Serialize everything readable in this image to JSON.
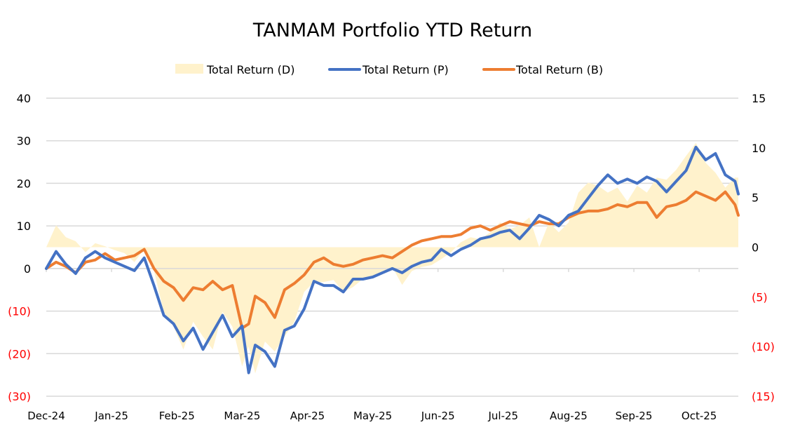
{
  "chart_data": {
    "type": "line",
    "title": "TANMAM Portfolio YTD Return",
    "legend_position": "top",
    "grid": true,
    "colors": {
      "D": "#fff2cc",
      "P": "#4472c4",
      "B": "#ed7d31",
      "negative_tick": "#ff0000",
      "positive_tick": "#000000",
      "grid": "#d9d9d9"
    },
    "x_tick_labels": [
      "Dec-24",
      "Jan-25",
      "Feb-25",
      "Mar-25",
      "Apr-25",
      "May-25",
      "Jun-25",
      "Jul-25",
      "Aug-25",
      "Sep-25",
      "Oct-25"
    ],
    "y_left": {
      "range": [
        -30,
        40
      ],
      "ticks": [
        40,
        30,
        20,
        10,
        0,
        -10,
        -20,
        -30
      ],
      "tick_labels": [
        "40",
        "30",
        "20",
        "10",
        "0",
        "(10)",
        "(20)",
        "(30)"
      ]
    },
    "y_right": {
      "range": [
        -15,
        15
      ],
      "ticks": [
        15,
        10,
        5,
        0,
        -5,
        -10,
        -15
      ],
      "tick_labels": [
        "15",
        "10",
        "5",
        "0",
        "(5)",
        "(10)",
        "(15)"
      ]
    },
    "x_range_months": [
      0,
      10.6
    ],
    "series": [
      {
        "name": "Total Return (D)",
        "key": "D",
        "type": "area",
        "axis": "right",
        "x": [
          0,
          0.15,
          0.3,
          0.45,
          0.6,
          0.75,
          0.9,
          1.05,
          1.2,
          1.35,
          1.5,
          1.65,
          1.8,
          1.95,
          2.1,
          2.25,
          2.4,
          2.55,
          2.7,
          2.85,
          3.0,
          3.1,
          3.2,
          3.35,
          3.5,
          3.65,
          3.8,
          3.95,
          4.1,
          4.25,
          4.4,
          4.55,
          4.7,
          4.85,
          5.0,
          5.15,
          5.3,
          5.45,
          5.6,
          5.75,
          5.9,
          6.05,
          6.2,
          6.35,
          6.5,
          6.65,
          6.8,
          6.95,
          7.1,
          7.25,
          7.4,
          7.55,
          7.7,
          7.85,
          8.0,
          8.15,
          8.3,
          8.45,
          8.6,
          8.75,
          8.9,
          9.05,
          9.2,
          9.35,
          9.5,
          9.65,
          9.8,
          9.95,
          10.1,
          10.25,
          10.4,
          10.55,
          10.6
        ],
        "values": [
          0,
          2.2,
          1.0,
          0.6,
          -0.5,
          0.4,
          0.1,
          -0.3,
          -0.6,
          -1.5,
          -0.2,
          -2.4,
          -6.5,
          -8.0,
          -10.3,
          -7.5,
          -9.0,
          -10.3,
          -6.5,
          -8.0,
          -12.0,
          -10.0,
          -12.7,
          -9.5,
          -10.5,
          -9.0,
          -7.5,
          -4.5,
          -3.5,
          -3.5,
          -3.3,
          -4.5,
          -4.0,
          -3.2,
          -3.0,
          -2.5,
          -2.0,
          -3.8,
          -2.4,
          -2.0,
          -1.8,
          -1.2,
          -0.5,
          0.5,
          1.0,
          0.8,
          1.5,
          2.5,
          1.8,
          2.2,
          3.0,
          0.0,
          2.5,
          1.5,
          2.5,
          5.5,
          6.5,
          6.2,
          5.5,
          6.0,
          4.6,
          6.2,
          5.5,
          7.0,
          6.8,
          7.8,
          9.2,
          10.5,
          8.5,
          7.5,
          6.0,
          7.0,
          7.0
        ]
      },
      {
        "name": "Total Return (P)",
        "key": "P",
        "type": "line",
        "axis": "left",
        "x": [
          0,
          0.15,
          0.3,
          0.45,
          0.6,
          0.75,
          0.9,
          1.05,
          1.2,
          1.35,
          1.5,
          1.65,
          1.8,
          1.95,
          2.1,
          2.25,
          2.4,
          2.55,
          2.7,
          2.85,
          3.0,
          3.1,
          3.2,
          3.35,
          3.5,
          3.65,
          3.8,
          3.95,
          4.1,
          4.25,
          4.4,
          4.55,
          4.7,
          4.85,
          5.0,
          5.15,
          5.3,
          5.45,
          5.6,
          5.75,
          5.9,
          6.05,
          6.2,
          6.35,
          6.5,
          6.65,
          6.8,
          6.95,
          7.1,
          7.25,
          7.4,
          7.55,
          7.7,
          7.85,
          8.0,
          8.15,
          8.3,
          8.45,
          8.6,
          8.75,
          8.9,
          9.05,
          9.2,
          9.35,
          9.5,
          9.65,
          9.8,
          9.95,
          10.1,
          10.25,
          10.4,
          10.55,
          10.6
        ],
        "values": [
          0,
          4.0,
          1.0,
          -1.2,
          2.5,
          4.0,
          2.5,
          1.5,
          0.5,
          -0.5,
          2.5,
          -4.0,
          -11.0,
          -13.0,
          -17.0,
          -14.0,
          -19.0,
          -15.0,
          -11.0,
          -16.0,
          -13.5,
          -24.5,
          -18.0,
          -19.5,
          -23.0,
          -14.5,
          -13.5,
          -9.5,
          -3.0,
          -4.0,
          -4.0,
          -5.5,
          -2.5,
          -2.5,
          -2.0,
          -1.0,
          0.0,
          -1.0,
          0.5,
          1.5,
          2.0,
          4.5,
          3.0,
          4.5,
          5.5,
          7.0,
          7.5,
          8.5,
          9.0,
          7.0,
          9.5,
          12.5,
          11.5,
          10.0,
          12.5,
          13.5,
          16.5,
          19.5,
          22.0,
          20.0,
          21.0,
          20.0,
          21.5,
          20.5,
          18.0,
          20.5,
          23.0,
          28.5,
          25.5,
          27.0,
          22.0,
          20.5,
          17.5
        ]
      },
      {
        "name": "Total Return (B)",
        "key": "B",
        "type": "line",
        "axis": "left",
        "x": [
          0,
          0.15,
          0.3,
          0.45,
          0.6,
          0.75,
          0.9,
          1.05,
          1.2,
          1.35,
          1.5,
          1.65,
          1.8,
          1.95,
          2.1,
          2.25,
          2.4,
          2.55,
          2.7,
          2.85,
          3.0,
          3.1,
          3.2,
          3.35,
          3.5,
          3.65,
          3.8,
          3.95,
          4.1,
          4.25,
          4.4,
          4.55,
          4.7,
          4.85,
          5.0,
          5.15,
          5.3,
          5.45,
          5.6,
          5.75,
          5.9,
          6.05,
          6.2,
          6.35,
          6.5,
          6.65,
          6.8,
          6.95,
          7.1,
          7.25,
          7.4,
          7.55,
          7.7,
          7.85,
          8.0,
          8.15,
          8.3,
          8.45,
          8.6,
          8.75,
          8.9,
          9.05,
          9.2,
          9.35,
          9.5,
          9.65,
          9.8,
          9.95,
          10.1,
          10.25,
          10.4,
          10.55,
          10.6
        ],
        "values": [
          0,
          1.5,
          0.5,
          -1.0,
          1.5,
          2.0,
          3.5,
          2.0,
          2.5,
          3.0,
          4.5,
          0.0,
          -3.0,
          -4.5,
          -7.5,
          -4.5,
          -5.0,
          -3.0,
          -5.0,
          -4.0,
          -14.0,
          -13.0,
          -6.5,
          -8.0,
          -11.5,
          -5.0,
          -3.5,
          -1.5,
          1.5,
          2.5,
          1.0,
          0.5,
          1.0,
          2.0,
          2.5,
          3.0,
          2.5,
          4.0,
          5.5,
          6.5,
          7.0,
          7.5,
          7.5,
          8.0,
          9.5,
          10.0,
          9.0,
          10.0,
          11.0,
          10.5,
          10.0,
          11.0,
          10.5,
          10.5,
          12.0,
          13.0,
          13.5,
          13.5,
          14.0,
          15.0,
          14.5,
          15.5,
          15.5,
          12.0,
          14.5,
          15.0,
          16.0,
          18.0,
          17.0,
          16.0,
          18.0,
          15.0,
          12.5
        ]
      }
    ],
    "legend": [
      {
        "key": "D",
        "label": "Total Return (D)"
      },
      {
        "key": "P",
        "label": "Total Return (P)"
      },
      {
        "key": "B",
        "label": "Total Return (B)"
      }
    ]
  }
}
